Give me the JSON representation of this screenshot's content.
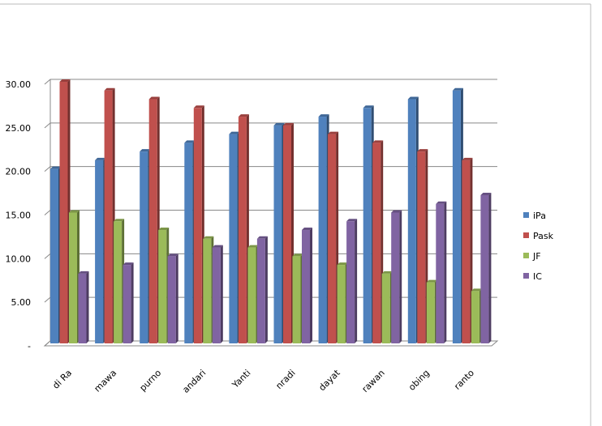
{
  "chart_data": {
    "type": "bar",
    "categories": [
      "di Ra",
      "mawa",
      "purno",
      "andari",
      "Yanti",
      "nradi",
      "dayat",
      "rawan",
      "obing",
      "ranto"
    ],
    "series": [
      {
        "name": "iPa",
        "color": "#4F81BD",
        "values": [
          20,
          21,
          22,
          23,
          24,
          25,
          26,
          27,
          28,
          29
        ]
      },
      {
        "name": "Pask",
        "color": "#C0504D",
        "values": [
          30,
          29,
          28,
          27,
          26,
          25,
          24,
          23,
          22,
          21
        ]
      },
      {
        "name": "JF",
        "color": "#9BBB59",
        "values": [
          15,
          14,
          13,
          12,
          11,
          10,
          9,
          8,
          7,
          6
        ]
      },
      {
        "name": "IC",
        "color": "#8064A2",
        "values": [
          8,
          9,
          10,
          11,
          12,
          13,
          14,
          15,
          16,
          17
        ]
      }
    ],
    "yticks": [
      "-",
      "5.00",
      "10.00",
      "15.00",
      "20.00",
      "25.00",
      "30.00"
    ],
    "ylim": [
      0,
      30
    ],
    "grid": true,
    "legend": "right",
    "style": "3d-clustered-column"
  }
}
